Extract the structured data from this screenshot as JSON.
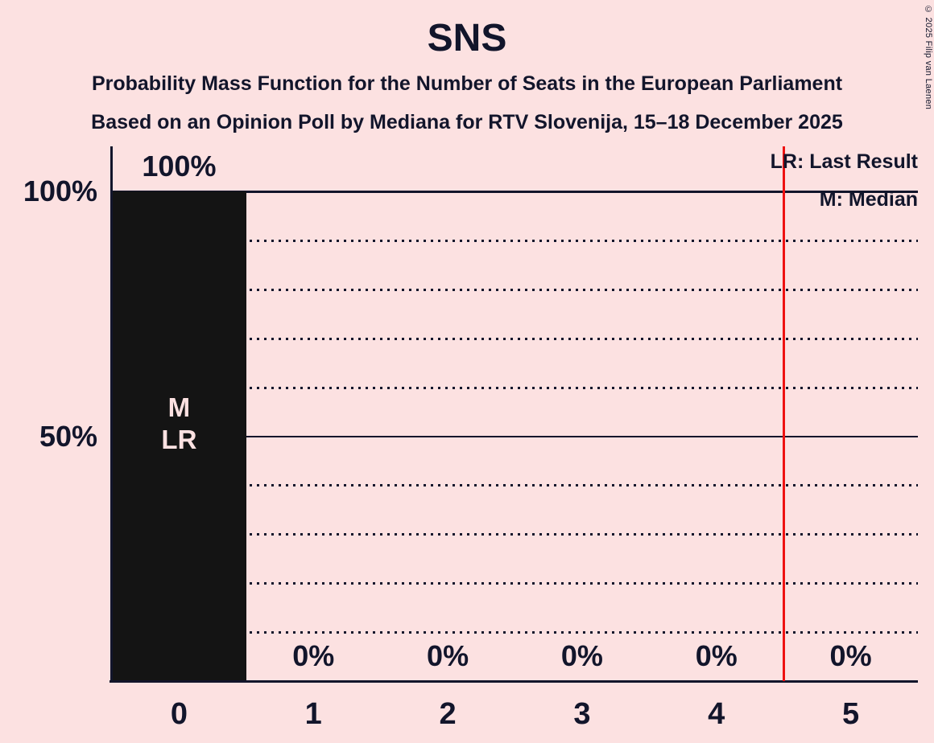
{
  "title": "SNS",
  "subtitles": [
    "Probability Mass Function for the Number of Seats in the European Parliament",
    "Based on an Opinion Poll by Mediana for RTV Slovenija, 15–18 December 2025"
  ],
  "legend": {
    "last_result": "LR: Last Result",
    "median": "M: Median"
  },
  "copyright": "© 2025 Filip van Laenen",
  "colors": {
    "background": "#fce1e1",
    "text": "#12152b",
    "bar": "#141414",
    "bar_annotation_text": "#fce1e1",
    "last_result_line": "#ee1111"
  },
  "chart_data": {
    "type": "bar",
    "title": "SNS",
    "categories": [
      "0",
      "1",
      "2",
      "3",
      "4",
      "5"
    ],
    "values": [
      100,
      0,
      0,
      0,
      0,
      0
    ],
    "value_labels": [
      "100%",
      "0%",
      "0%",
      "0%",
      "0%",
      "0%"
    ],
    "ylim": [
      0,
      100
    ],
    "y_ticks": [
      {
        "value": 100,
        "label": "100%"
      },
      {
        "value": 50,
        "label": "50%"
      }
    ],
    "gridlines": {
      "solid_at": [
        100,
        50
      ],
      "dotted_at": [
        90,
        80,
        70,
        60,
        40,
        30,
        20,
        10
      ]
    },
    "bar_annotations": [
      {
        "category_index": 0,
        "lines": [
          "M",
          "LR"
        ]
      }
    ],
    "red_vertical_line_at_x": 4.5,
    "legend_position": "top-right",
    "xlabel": "",
    "ylabel": ""
  }
}
